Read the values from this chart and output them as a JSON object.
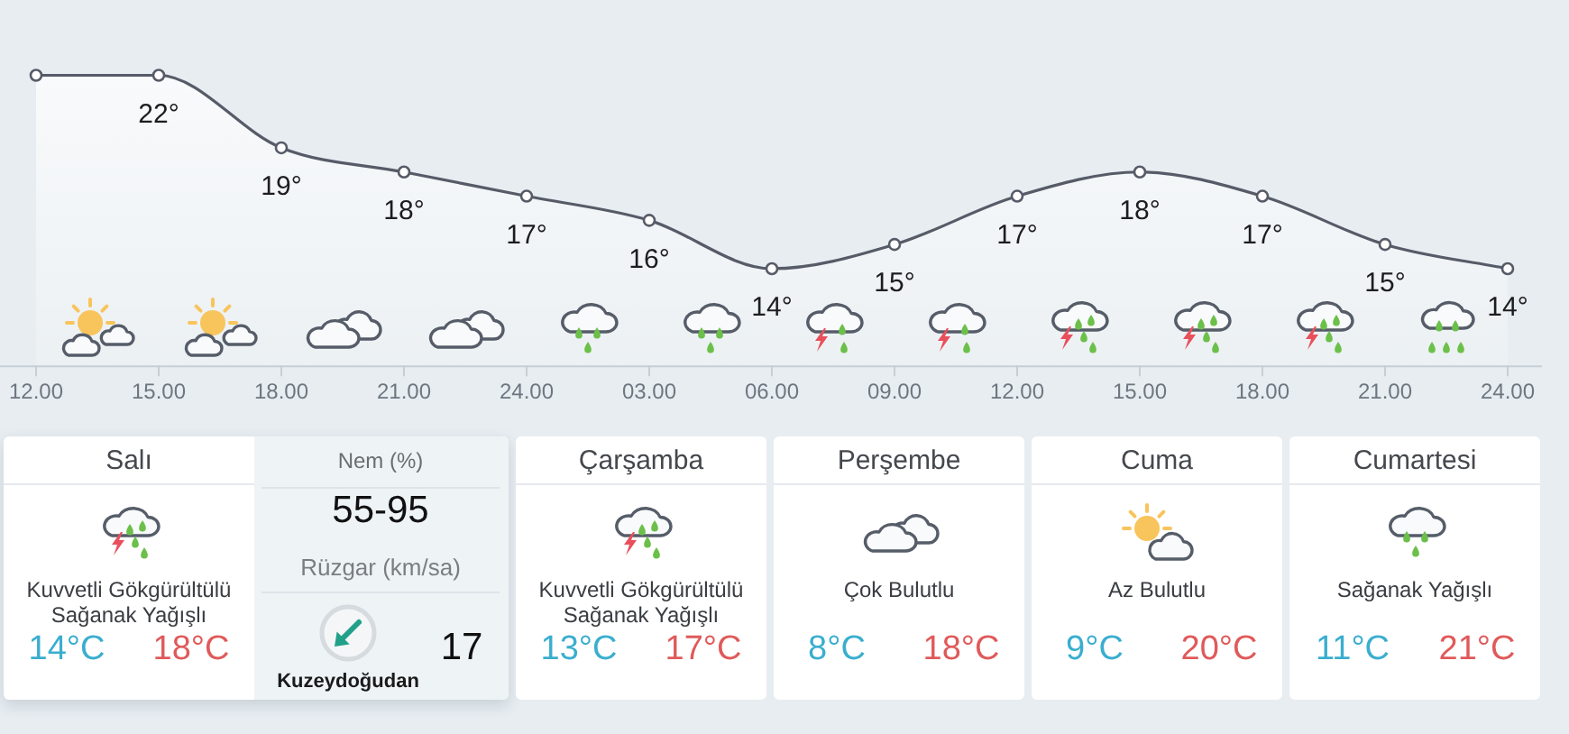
{
  "chart_data": [
    {
      "type": "area",
      "categories": [
        "12.00",
        "15.00",
        "18.00",
        "21.00",
        "24.00",
        "03.00",
        "06.00",
        "09.00",
        "12.00",
        "15.00",
        "18.00",
        "21.00",
        "24.00"
      ],
      "values": [
        22,
        22,
        19,
        18,
        17,
        16,
        14,
        15,
        17,
        18,
        17,
        15,
        14
      ],
      "value_labels": [
        null,
        "22°",
        "19°",
        "18°",
        "17°",
        "16°",
        "14°",
        "15°",
        "17°",
        "18°",
        "17°",
        "15°",
        "14°"
      ],
      "color": "#565b67",
      "marker": "circle",
      "tick_labels": "x"
    },
    {
      "type": "other",
      "categories": [
        "Salı",
        "Çarşamba",
        "Perşembe",
        "Cuma",
        "Cumartesi"
      ],
      "annotations": [
        "Kuvvetli Gökgürültülü Sağanak Yağışlı",
        "14°C",
        "18°C",
        "Kuvvetli Gökgürültülü Sağanak Yağışlı",
        "13°C",
        "17°C",
        "Çok Bulutlu",
        "8°C",
        "18°C",
        "Az Bulutlu",
        "9°C",
        "20°C",
        "Sağanak Yağışlı",
        "11°C",
        "21°C",
        "Nem (%)",
        "55-95",
        "Rüzgar (km/sa)",
        "17",
        "Kuzeydoğudan"
      ]
    }
  ]
}
